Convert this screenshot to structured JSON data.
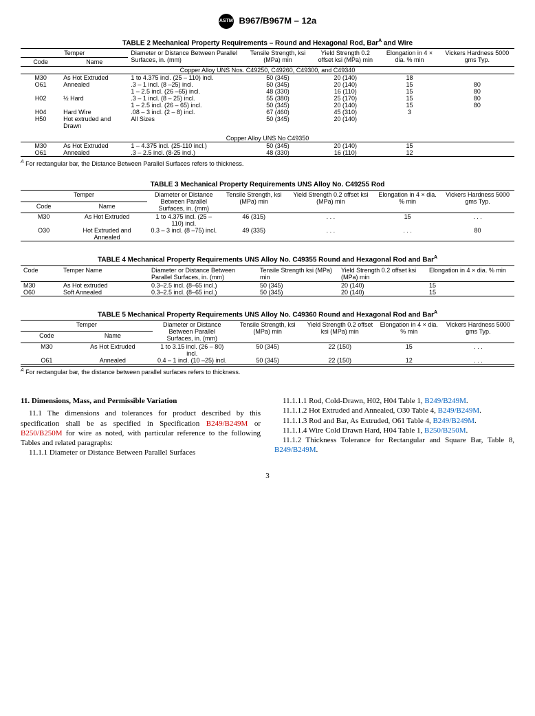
{
  "header": {
    "standard": "B967/B967M – 12a",
    "logo_text": "ASTM"
  },
  "table2": {
    "title": "TABLE 2 Mechanical Property Requirements – Round and Hexagonal Rod, Bar",
    "title_sup": "A",
    "title_tail": " and Wire",
    "headers": {
      "temper": "Temper",
      "code": "Code",
      "name": "Name",
      "diameter": "Diameter or Distance Between Parallel Surfaces, in. (mm)",
      "tensile": "Tensile Strength, ksi (MPa) min",
      "yield": "Yield Strength 0.2 offset ksi (MPa) min",
      "elong": "Elongation in 4 × dia. % min",
      "vickers": "Vickers Hardness 5000 gms Typ."
    },
    "section1": "Copper Alloy UNS Nos. C49250, C49260, C49300, and C49340",
    "rows1": [
      {
        "code": "M30",
        "name": "As Hot Extruded",
        "dia": "1 to 4.375 incl. (25 – 110) incl.",
        "ts": "50 (345)",
        "ys": "20 (140)",
        "el": "18",
        "vh": ""
      },
      {
        "code": "O61",
        "name": "Annealed",
        "dia": ".3 – 1 incl. (8 –25) incl.",
        "ts": "50 (345)",
        "ys": "20 (140)",
        "el": "15",
        "vh": "80"
      },
      {
        "code": "",
        "name": "",
        "dia": "1 – 2.5 incl. (26 –65) incl.",
        "ts": "48 (330)",
        "ys": "16 (110)",
        "el": "15",
        "vh": "80"
      },
      {
        "code": "H02",
        "name": "½ Hard",
        "dia": ".3 – 1 incl. (8 – 25) incl.",
        "ts": "55 (380)",
        "ys": "25 (170)",
        "el": "15",
        "vh": "80"
      },
      {
        "code": "",
        "name": "",
        "dia": "1 – 2.5 incl. (26 – 65) incl.",
        "ts": "50 (345)",
        "ys": "20 (140)",
        "el": "15",
        "vh": "80"
      },
      {
        "code": "H04",
        "name": "Hard Wire",
        "dia": ".08 – 3 incl. (2 – 8) incl.",
        "ts": "67 (460)",
        "ys": "45 (310)",
        "el": "3",
        "vh": ""
      },
      {
        "code": "H50",
        "name": "Hot extruded and Drawn",
        "dia": "All Sizes",
        "ts": "50 (345)",
        "ys": "20 (140)",
        "el": "",
        "vh": ""
      }
    ],
    "section2": "Copper Alloy UNS No C49350",
    "rows2": [
      {
        "code": "M30",
        "name": "As Hot Extruded",
        "dia": "1 –  4.375 incl. (25-110 incl.)",
        "ts": "50 (345)",
        "ys": "20 (140)",
        "el": "15",
        "vh": ""
      },
      {
        "code": "O61",
        "name": "Annealed",
        "dia": ".3 – 2.5 incl. (8-25 incl.)",
        "ts": "48 (330)",
        "ys": "16 (110)",
        "el": "12",
        "vh": ""
      }
    ],
    "footnote_sup": "A",
    "footnote": " For rectangular bar, the Distance Between Parallel Surfaces refers to thickness."
  },
  "table3": {
    "title": "TABLE 3 Mechanical Property Requirements UNS Alloy No. C49255 Rod",
    "headers": {
      "temper": "Temper",
      "code": "Code",
      "name": "Name",
      "diameter": "Diameter or Distance Between Parallel Surfaces, in. (mm)",
      "tensile": "Tensile Strength, ksi (MPa) min",
      "yield": "Yield Strength 0.2 offset ksi (MPa) min",
      "elong": "Elongation in 4 × dia. % min",
      "vickers": "Vickers Hardness 5000 gms Typ."
    },
    "rows": [
      {
        "code": "M30",
        "name": "As Hot Extruded",
        "dia": "1 to 4.375 incl. (25 – 110) incl.",
        "ts": "46 (315)",
        "ys": ". . .",
        "el": "15",
        "vh": ". . ."
      },
      {
        "code": "O30",
        "name": "Hot Extruded and Annealed",
        "dia": "0.3 – 3 incl. (8 –75) incl.",
        "ts": "49 (335)",
        "ys": ". . .",
        "el": ". . .",
        "vh": "80"
      }
    ]
  },
  "table4": {
    "title": "TABLE 4 Mechanical Property Requirements UNS Alloy No. C49355 Round and Hexagonal Rod and Bar",
    "title_sup": "A",
    "headers": {
      "code": "Code",
      "name": "Temper Name",
      "diameter": "Diameter or Distance Between Parallel Surfaces, in. (mm)",
      "tensile": "Tensile Strength ksi (MPa) min",
      "yield": "Yield Strength 0.2 offset ksi (MPa) min",
      "elong": "Elongation in 4 × dia. % min"
    },
    "rows": [
      {
        "code": "M30",
        "name": "As Hot extruded",
        "dia": "0.3–2.5 incl. (8–65 incl.)",
        "ts": "50 (345)",
        "ys": "20 (140)",
        "el": "15"
      },
      {
        "code": "O60",
        "name": "Soft Annealed",
        "dia": "0.3–2.5 incl. (8–65 incl.)",
        "ts": "50 (345)",
        "ys": "20 (140)",
        "el": "15"
      }
    ]
  },
  "table5": {
    "title": "TABLE 5 Mechanical Property Requirements UNS Alloy No. C49360 Round and Hexagonal Rod and Bar",
    "title_sup": "A",
    "headers": {
      "temper": "Temper",
      "code": "Code",
      "name": "Name",
      "diameter": "Diameter or Distance Between Parallel Surfaces, in. (mm)",
      "tensile": "Tensile Strength, ksi (MPa) min",
      "yield": "Yield Strength 0.2 offset ksi (MPa) min",
      "elong": "Elongation in 4 × dia. % min",
      "vickers": "Vickers Hardness 5000 gms Typ."
    },
    "rows": [
      {
        "code": "M30",
        "name": "As Hot Extruded",
        "dia": "1 to 3.15 incl. (26 – 80) incl.",
        "ts": "50 (345)",
        "ys": "22 (150)",
        "el": "15",
        "vh": ". . ."
      },
      {
        "code": "O61",
        "name": "Annealed",
        "dia": "0.4 – 1 incl. (10 –25) incl.",
        "ts": "50 (345)",
        "ys": "22 (150)",
        "el": "12",
        "vh": ". . ."
      }
    ],
    "footnote_sup": "A",
    "footnote": " For rectangular bar, the distance between parallel surfaces refers to thickness."
  },
  "body": {
    "section_title": "11.  Dimensions, Mass, and Permissible Variation",
    "p1a": "11.1 The dimensions and tolerances for product described by this specification shall be as specified in Specification ",
    "link1": "B249/B249M",
    "p1b": " or ",
    "link2": "B250/B250M",
    "p1c": " for wire as noted, with particular reference to the following Tables and related paragraphs:",
    "p2": "11.1.1 Diameter or Distance Between Parallel Surfaces",
    "p3a": "11.1.1.1 Rod, Cold-Drawn, H02, H04 Table 1, ",
    "link3": "B249/B249M",
    "p3b": ".",
    "p4a": "11.1.1.2 Hot Extruded and Annealed, O30 Table 4, ",
    "link4": "B249/B249M",
    "p4b": ".",
    "p5a": "11.1.1.3 Rod and Bar, As Extruded, O61 Table 4, ",
    "link5": "B249/B249M",
    "p5b": ".",
    "p6a": "11.1.1.4 Wire Cold Drawn Hard, H04 Table 1, ",
    "link6": "B250/B250M",
    "p6b": ".",
    "p7a": "11.1.2 Thickness Tolerance for Rectangular and Square Bar, Table 8, ",
    "link7": "B249/B249M",
    "p7b": "."
  },
  "pagenum": "3"
}
